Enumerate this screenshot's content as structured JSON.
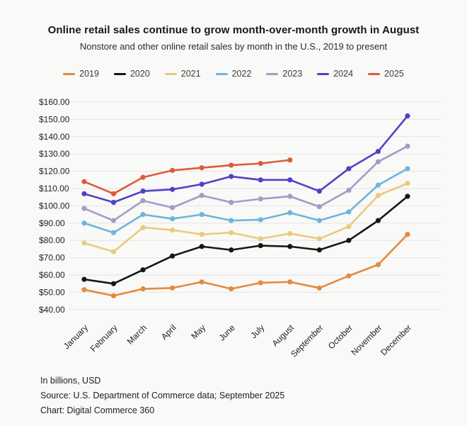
{
  "header": {
    "title": "Online retail sales continue to grow month-over-month growth in August",
    "subtitle": "Nonstore and other online retail sales by month in the U.S., 2019 to present"
  },
  "chart_data": {
    "type": "line",
    "title": "Online retail sales continue to grow month-over-month growth in August",
    "subtitle": "Nonstore and other online retail sales by month in the U.S., 2019 to present",
    "categories": [
      "January",
      "February",
      "March",
      "April",
      "May",
      "June",
      "July",
      "August",
      "September",
      "October",
      "November",
      "December"
    ],
    "series": [
      {
        "name": "2019",
        "color": "#e28b3e",
        "values": [
          51.5,
          48,
          52,
          52.5,
          56,
          52,
          55.5,
          56,
          52.5,
          59.5,
          66,
          83.5
        ]
      },
      {
        "name": "2020",
        "color": "#161616",
        "values": [
          57.5,
          55,
          63,
          71,
          76.5,
          74.5,
          77,
          76.5,
          74.5,
          80,
          91.5,
          105.5
        ]
      },
      {
        "name": "2021",
        "color": "#e9cb7e",
        "values": [
          78.5,
          73.5,
          87.5,
          86,
          83.5,
          84.5,
          81,
          84,
          81,
          88,
          106,
          113
        ]
      },
      {
        "name": "2022",
        "color": "#70b4da",
        "values": [
          90,
          84.5,
          95,
          92.5,
          95,
          91.5,
          92,
          96,
          91.5,
          96.5,
          112,
          121.5
        ]
      },
      {
        "name": "2023",
        "color": "#a79ac5",
        "values": [
          98.5,
          91.5,
          103,
          99,
          106,
          102,
          104,
          105.5,
          99.5,
          109,
          125.5,
          134.5
        ]
      },
      {
        "name": "2024",
        "color": "#5240c8",
        "values": [
          107,
          102,
          108.5,
          109.5,
          112.5,
          117,
          115,
          115,
          108.5,
          121.5,
          131.5,
          152
        ]
      },
      {
        "name": "2025",
        "color": "#df5a38",
        "values": [
          114,
          107,
          116.5,
          120.5,
          122,
          123.5,
          124.5,
          126.5
        ]
      }
    ],
    "ylim": [
      40,
      160
    ],
    "ytick_values": [
      160,
      150,
      140,
      130,
      120,
      110,
      100,
      90,
      80,
      70,
      60,
      50,
      40
    ],
    "ytick_labels": [
      "$160.00",
      "$150.00",
      "$140.00",
      "$130.00",
      "$120.00",
      "$110.00",
      "$100.00",
      "$90.00",
      "$80.00",
      "$70.00",
      "$60.00",
      "$50.00",
      "$40.00"
    ],
    "grid": true,
    "legend_position": "top",
    "units": "billions USD"
  },
  "footer": {
    "note": "In billions, USD",
    "source": "Source: U.S. Department of Commerce data; September 2025",
    "credit": "Chart: Digital Commerce 360"
  }
}
